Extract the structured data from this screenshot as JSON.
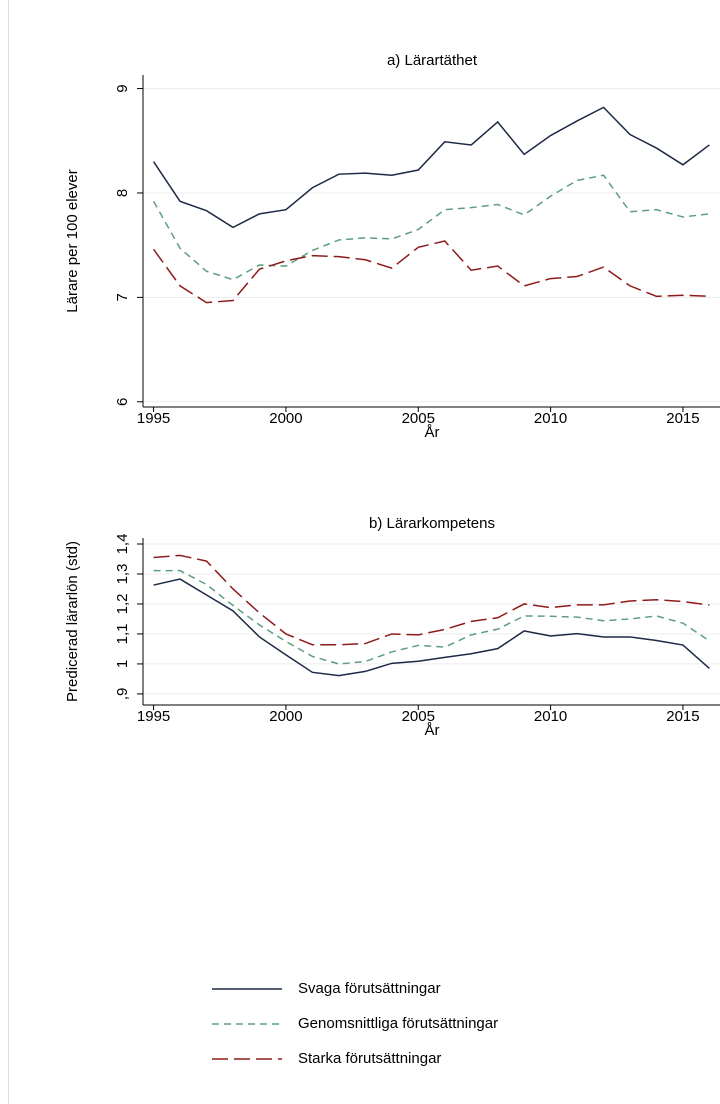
{
  "chart_data": [
    {
      "type": "line",
      "title": "a) Lärartäthet",
      "x_label": "År",
      "y_label": "Lärare per 100 elever",
      "x": [
        1995,
        1996,
        1997,
        1998,
        1999,
        2000,
        2001,
        2002,
        2003,
        2004,
        2005,
        2006,
        2007,
        2008,
        2009,
        2010,
        2011,
        2012,
        2013,
        2014,
        2015,
        2016
      ],
      "xlim": [
        1994.6,
        2016.4
      ],
      "xticks": [
        1995,
        2000,
        2005,
        2010,
        2015
      ],
      "ylim": [
        5.95,
        9.13
      ],
      "yticks": [
        6,
        7,
        8,
        9
      ],
      "grid": true,
      "series": [
        {
          "name": "Svaga förutsättningar",
          "color": "#1c2a44",
          "dash": "solid",
          "values": [
            8.3,
            7.92,
            7.83,
            7.67,
            7.8,
            7.84,
            8.05,
            8.18,
            8.19,
            8.17,
            8.22,
            8.49,
            8.46,
            8.68,
            8.37,
            8.55,
            8.69,
            8.82,
            8.56,
            8.43,
            8.27,
            8.46
          ]
        },
        {
          "name": "Genomsnittliga förutsättningar",
          "color": "#5e9e80",
          "dash": "short",
          "values": [
            7.92,
            7.47,
            7.25,
            7.17,
            7.31,
            7.3,
            7.45,
            7.55,
            7.57,
            7.56,
            7.65,
            7.84,
            7.86,
            7.89,
            7.79,
            7.97,
            8.12,
            8.17,
            7.82,
            7.84,
            7.77,
            7.8
          ]
        },
        {
          "name": "Starka förutsättningar",
          "color": "#8e1b1b",
          "dash": "long",
          "values": [
            7.46,
            7.11,
            6.95,
            6.97,
            7.27,
            7.35,
            7.4,
            7.39,
            7.36,
            7.28,
            7.48,
            7.54,
            7.26,
            7.3,
            7.11,
            7.18,
            7.2,
            7.29,
            7.11,
            7.01,
            7.02,
            7.01
          ]
        }
      ]
    },
    {
      "type": "line",
      "title": "b) Lärarkompetens",
      "x_label": "År",
      "y_label": "Predicerad lärarlön (std)",
      "x": [
        1995,
        1996,
        1997,
        1998,
        1999,
        2000,
        2001,
        2002,
        2003,
        2004,
        2005,
        2006,
        2007,
        2008,
        2009,
        2010,
        2011,
        2012,
        2013,
        2014,
        2015,
        2016
      ],
      "xlim": [
        1994.6,
        2016.4
      ],
      "xticks": [
        1995,
        2000,
        2005,
        2010,
        2015
      ],
      "ylim": [
        0.863,
        1.42
      ],
      "yticks": [
        {
          "value": 0.9,
          "label": ",9"
        },
        1,
        {
          "value": 1.1,
          "label": "1,1"
        },
        {
          "value": 1.2,
          "label": "1,2"
        },
        {
          "value": 1.3,
          "label": "1,3"
        },
        {
          "value": 1.4,
          "label": "1,4"
        }
      ],
      "grid": true,
      "series": [
        {
          "color": "#1c2a44",
          "dash": "solid",
          "values": [
            1.263,
            1.283,
            1.23,
            1.177,
            1.09,
            1.03,
            0.972,
            0.961,
            0.975,
            1.002,
            1.009,
            1.022,
            1.034,
            1.051,
            1.11,
            1.093,
            1.101,
            1.09,
            1.09,
            1.078,
            1.063,
            0.985
          ]
        },
        {
          "color": "#5e9e80",
          "dash": "short",
          "values": [
            1.311,
            1.311,
            1.265,
            1.195,
            1.13,
            1.075,
            1.025,
            1.0,
            1.008,
            1.04,
            1.062,
            1.056,
            1.097,
            1.116,
            1.16,
            1.159,
            1.156,
            1.144,
            1.15,
            1.16,
            1.136,
            1.077
          ]
        },
        {
          "color": "#8e1b1b",
          "dash": "long",
          "values": [
            1.355,
            1.362,
            1.343,
            1.25,
            1.17,
            1.1,
            1.064,
            1.064,
            1.068,
            1.1,
            1.097,
            1.115,
            1.142,
            1.154,
            1.2,
            1.188,
            1.197,
            1.197,
            1.21,
            1.214,
            1.208,
            1.196
          ]
        }
      ]
    }
  ]
}
